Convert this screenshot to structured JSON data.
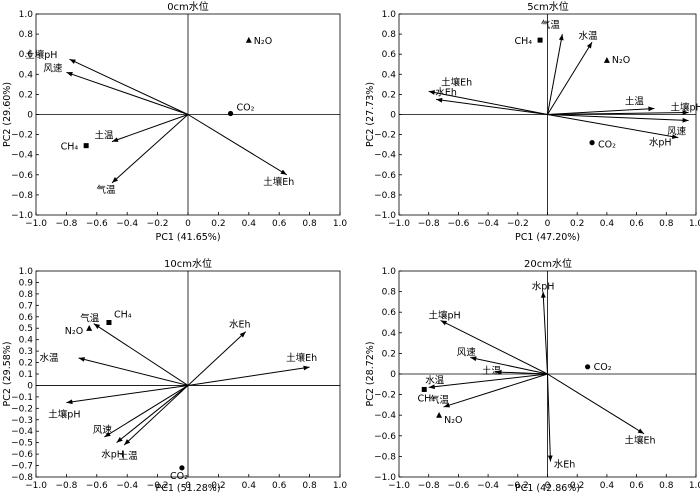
{
  "chart_data": [
    {
      "type": "scatter",
      "title": "0cm水位",
      "xlabel": "PC1 (41.65%)",
      "ylabel": "PC2 (29.60%)",
      "xlim": [
        -1.0,
        1.0
      ],
      "ylim": [
        -1.0,
        1.0
      ],
      "xticks": [
        "−1.0",
        "−0.8",
        "−0.6",
        "−0.4",
        "−0.2",
        "0",
        "0.2",
        "0.4",
        "0.6",
        "0.8",
        "1.0"
      ],
      "yticks": [
        "−1.0",
        "−0.8",
        "−0.6",
        "−0.4",
        "−0.2",
        "0",
        "0.2",
        "0.4",
        "0.6",
        "0.8",
        "1.0"
      ],
      "vectors": [
        {
          "name": "土壤pH",
          "x": -0.78,
          "y": 0.55
        },
        {
          "name": "风速",
          "x": -0.8,
          "y": 0.42
        },
        {
          "name": "土温",
          "x": -0.5,
          "y": -0.27
        },
        {
          "name": "气温",
          "x": -0.5,
          "y": -0.68
        },
        {
          "name": "土壤Eh",
          "x": 0.65,
          "y": -0.6
        }
      ],
      "points": [
        {
          "name": "N₂O",
          "x": 0.4,
          "y": 0.74,
          "marker": "triangle"
        },
        {
          "name": "CO₂",
          "x": 0.28,
          "y": 0.01,
          "marker": "circle"
        },
        {
          "name": "CH₄",
          "x": -0.67,
          "y": -0.31,
          "marker": "square"
        }
      ]
    },
    {
      "type": "scatter",
      "title": "5cm水位",
      "xlabel": "PC1 (47.20%)",
      "ylabel": "PC2 (27.73%)",
      "xlim": [
        -1.0,
        1.0
      ],
      "ylim": [
        -1.0,
        1.0
      ],
      "xticks": [
        "−1.0",
        "−0.8",
        "−0.6",
        "−0.4",
        "−0.2",
        "0",
        "0.2",
        "0.4",
        "0.6",
        "0.8",
        "1.0"
      ],
      "yticks": [
        "−1.0",
        "−0.8",
        "−0.6",
        "−0.4",
        "−0.2",
        "0",
        "0.2",
        "0.4",
        "0.6",
        "0.8",
        "1.0"
      ],
      "vectors": [
        {
          "name": "气温",
          "x": 0.1,
          "y": 0.8
        },
        {
          "name": "水温",
          "x": 0.3,
          "y": 0.72
        },
        {
          "name": "土壤Eh",
          "x": -0.8,
          "y": 0.23
        },
        {
          "name": "水Eh",
          "x": -0.75,
          "y": 0.15
        },
        {
          "name": "土温",
          "x": 0.72,
          "y": 0.06
        },
        {
          "name": "土壤pH",
          "x": 0.95,
          "y": 0.02
        },
        {
          "name": "风速",
          "x": 0.95,
          "y": -0.06
        },
        {
          "name": "水pH",
          "x": 0.88,
          "y": -0.23
        }
      ],
      "points": [
        {
          "name": "CH₄",
          "x": -0.05,
          "y": 0.74,
          "marker": "square"
        },
        {
          "name": "N₂O",
          "x": 0.4,
          "y": 0.54,
          "marker": "triangle"
        },
        {
          "name": "CO₂",
          "x": 0.3,
          "y": -0.28,
          "marker": "circle"
        }
      ]
    },
    {
      "type": "scatter",
      "title": "10cm水位",
      "xlabel": "PC1 (51.28%)",
      "ylabel": "PC2 (29.58%)",
      "xlim": [
        -1.0,
        1.0
      ],
      "ylim": [
        -0.8,
        1.0
      ],
      "xticks": [
        "−1.0",
        "−0.8",
        "−0.6",
        "−0.4",
        "−0.2",
        "0",
        "0.2",
        "0.4",
        "0.6",
        "0.8",
        "1.0"
      ],
      "yticks": [
        "−0.8",
        "−0.7",
        "−0.6",
        "−0.5",
        "−0.4",
        "−0.3",
        "−0.2",
        "−0.1",
        "0",
        "0.1",
        "0.2",
        "0.3",
        "0.4",
        "0.5",
        "0.6",
        "0.7",
        "0.8",
        "0.9",
        "1.0"
      ],
      "vectors": [
        {
          "name": "气温",
          "x": -0.62,
          "y": 0.54
        },
        {
          "name": "水温",
          "x": -0.72,
          "y": 0.24
        },
        {
          "name": "土壤pH",
          "x": -0.8,
          "y": -0.15
        },
        {
          "name": "风速",
          "x": -0.55,
          "y": -0.45
        },
        {
          "name": "水pH",
          "x": -0.47,
          "y": -0.5
        },
        {
          "name": "土温",
          "x": -0.42,
          "y": -0.52
        },
        {
          "name": "水Eh",
          "x": 0.38,
          "y": 0.47
        },
        {
          "name": "土壤Eh",
          "x": 0.8,
          "y": 0.16
        }
      ],
      "points": [
        {
          "name": "CH₄",
          "x": -0.52,
          "y": 0.55,
          "marker": "square"
        },
        {
          "name": "N₂O",
          "x": -0.65,
          "y": 0.5,
          "marker": "triangle"
        },
        {
          "name": "CO₂",
          "x": -0.04,
          "y": -0.72,
          "marker": "circle"
        }
      ]
    },
    {
      "type": "scatter",
      "title": "20cm水位",
      "xlabel": "PC1 (42.86%)",
      "ylabel": "PC2 (28.72%)",
      "xlim": [
        -1.0,
        1.0
      ],
      "ylim": [
        -1.0,
        1.0
      ],
      "xticks": [
        "−1.0",
        "−0.8",
        "−0.6",
        "−0.4",
        "−0.2",
        "0",
        "0.2",
        "0.4",
        "0.6",
        "0.8",
        "1.0"
      ],
      "yticks": [
        "−1.0",
        "−0.8",
        "−0.6",
        "−0.4",
        "−0.2",
        "0",
        "0.2",
        "0.4",
        "0.6",
        "0.8",
        "1.0"
      ],
      "vectors": [
        {
          "name": "水pH",
          "x": -0.03,
          "y": 0.8
        },
        {
          "name": "土壤pH",
          "x": -0.72,
          "y": 0.52
        },
        {
          "name": "风速",
          "x": -0.52,
          "y": 0.16
        },
        {
          "name": "土温",
          "x": -0.35,
          "y": 0.02
        },
        {
          "name": "水温",
          "x": -0.8,
          "y": -0.13
        },
        {
          "name": "气温",
          "x": -0.7,
          "y": -0.32
        },
        {
          "name": "土壤Eh",
          "x": 0.65,
          "y": -0.58
        },
        {
          "name": "水Eh",
          "x": 0.02,
          "y": -0.85
        }
      ],
      "points": [
        {
          "name": "CO₂",
          "x": 0.27,
          "y": 0.07,
          "marker": "circle"
        },
        {
          "name": "CH₄",
          "x": -0.83,
          "y": -0.15,
          "marker": "square"
        },
        {
          "name": "N₂O",
          "x": -0.73,
          "y": -0.4,
          "marker": "triangle"
        }
      ]
    }
  ]
}
